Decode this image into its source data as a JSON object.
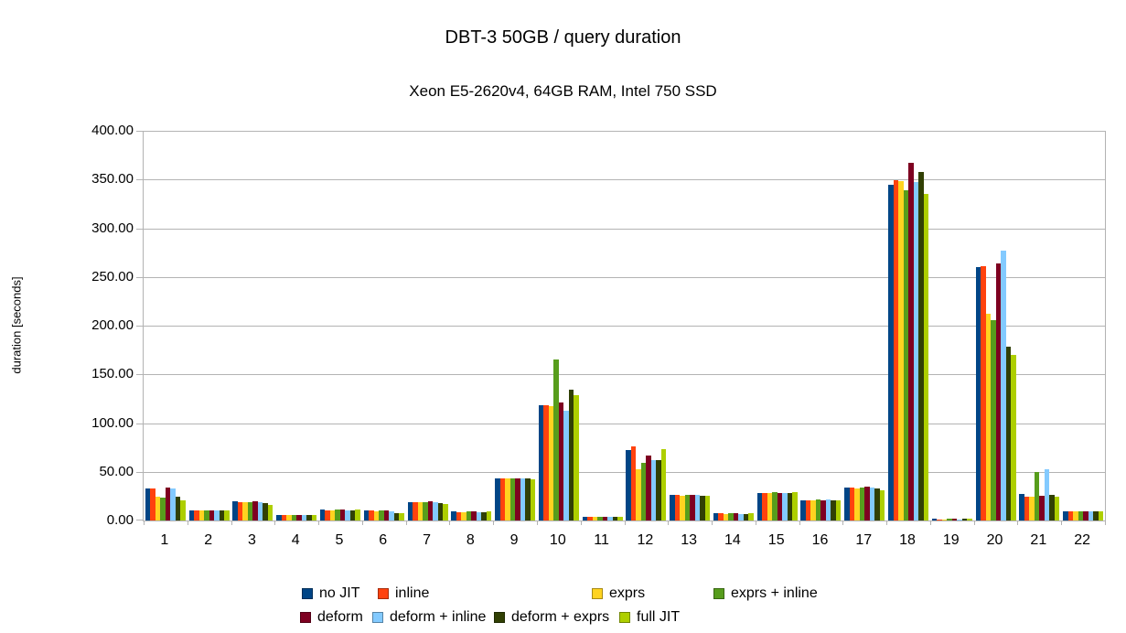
{
  "chart_data": {
    "type": "bar",
    "title": "DBT-3 50GB / query duration",
    "subtitle": "Xeon E5-2620v4, 64GB RAM, Intel 750 SSD",
    "xlabel": "",
    "ylabel": "duration [seconds]",
    "ylim": [
      0,
      400
    ],
    "ytick_step": 50,
    "ytick_labels": [
      "0.00",
      "50.00",
      "100.00",
      "150.00",
      "200.00",
      "250.00",
      "300.00",
      "350.00",
      "400.00"
    ],
    "grid": true,
    "legend_position": "bottom",
    "categories": [
      "1",
      "2",
      "3",
      "4",
      "5",
      "6",
      "7",
      "8",
      "9",
      "10",
      "11",
      "12",
      "13",
      "14",
      "15",
      "16",
      "17",
      "18",
      "19",
      "20",
      "21",
      "22"
    ],
    "series": [
      {
        "name": "no JIT",
        "color": "#004586",
        "values": [
          32.5,
          10.5,
          20,
          6,
          11,
          10,
          19,
          9,
          43.5,
          118,
          4,
          72,
          26.5,
          7.5,
          28.5,
          21,
          34,
          345,
          1.5,
          260,
          27,
          9.5
        ]
      },
      {
        "name": "inline",
        "color": "#FF420E",
        "values": [
          32.5,
          10,
          19,
          5.5,
          10.5,
          10,
          18.5,
          8.5,
          43.5,
          118,
          4,
          76,
          26,
          7.5,
          28,
          21,
          33.5,
          349,
          1.4,
          261,
          24,
          9
        ]
      },
      {
        "name": "exprs",
        "color": "#FFD320",
        "values": [
          24,
          10,
          18.5,
          5.5,
          10.5,
          9.5,
          18.5,
          8.5,
          43,
          117,
          3.8,
          53,
          25.5,
          7,
          28,
          20.5,
          33,
          348,
          1.4,
          212,
          24,
          9
        ]
      },
      {
        "name": "exprs + inline",
        "color": "#579D1C",
        "values": [
          23.5,
          10.5,
          18.5,
          6,
          11,
          10,
          19,
          9,
          43.5,
          165,
          4,
          59,
          26,
          7.5,
          29,
          21.5,
          33.5,
          339,
          2,
          206,
          50,
          9.5
        ]
      },
      {
        "name": "deform",
        "color": "#7E0021",
        "values": [
          34,
          10.5,
          19.5,
          5.5,
          11,
          10,
          19.5,
          9,
          43.5,
          121,
          4,
          67,
          26.5,
          7.5,
          28.5,
          21,
          34.5,
          367,
          1.5,
          264,
          25,
          9.5
        ]
      },
      {
        "name": "deform + inline",
        "color": "#83CAFF",
        "values": [
          32.5,
          10,
          19,
          5.5,
          10.5,
          9.5,
          19,
          8.5,
          43,
          113,
          3.8,
          62,
          26,
          7,
          28,
          22,
          34,
          347,
          1.4,
          277,
          53,
          9
        ]
      },
      {
        "name": "deform + exprs",
        "color": "#314004",
        "values": [
          24,
          10,
          18,
          5.5,
          10.5,
          8,
          17.5,
          8.5,
          43,
          134,
          3.8,
          62,
          25,
          7,
          28,
          21,
          33,
          358,
          2,
          178,
          26,
          9
        ]
      },
      {
        "name": "full JIT",
        "color": "#AECF00",
        "values": [
          20.5,
          10.5,
          16,
          6,
          11,
          8,
          16.5,
          9,
          42.5,
          129,
          4,
          73,
          25,
          8,
          29,
          21,
          31.5,
          335,
          1.5,
          170,
          24.5,
          9.5
        ]
      }
    ]
  }
}
